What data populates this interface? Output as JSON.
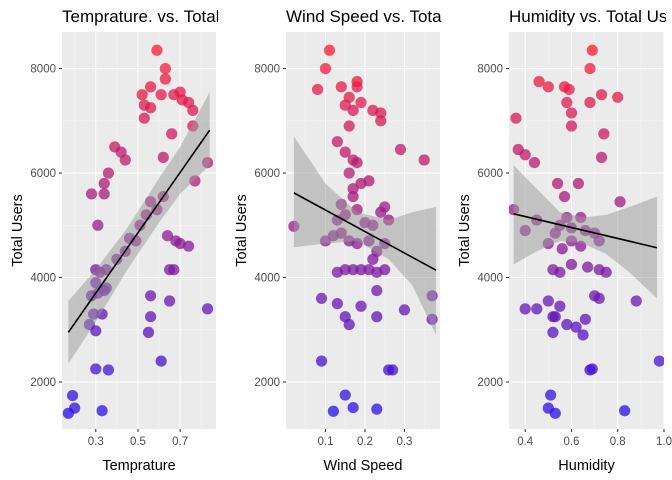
{
  "chart_data": [
    {
      "type": "scatter",
      "title": "Temprature. vs. Total Users",
      "xlabel": "Temprature",
      "ylabel": "Total Users",
      "xlim": [
        0.14,
        0.87
      ],
      "ylim": [
        1100,
        8700
      ],
      "xticks": [
        0.3,
        0.5,
        0.7
      ],
      "xtick_labels": [
        "0.3",
        "0.5",
        "0.7"
      ],
      "yticks": [
        2000,
        4000,
        6000,
        8000
      ],
      "ytick_labels": [
        "2000",
        "4000",
        "6000",
        "8000"
      ],
      "fit": {
        "x": [
          0.17,
          0.84
        ],
        "y": [
          2950,
          6820
        ]
      },
      "ci": {
        "x": [
          0.17,
          0.3,
          0.45,
          0.6,
          0.7,
          0.84
        ],
        "lower": [
          2350,
          3150,
          4150,
          5050,
          5600,
          6150
        ],
        "upper": [
          3550,
          4150,
          4950,
          5900,
          6500,
          7550
        ]
      },
      "points": [
        {
          "x": 0.17,
          "y": 1400
        },
        {
          "x": 0.19,
          "y": 1740
        },
        {
          "x": 0.2,
          "y": 1500
        },
        {
          "x": 0.33,
          "y": 1450
        },
        {
          "x": 0.3,
          "y": 2250
        },
        {
          "x": 0.36,
          "y": 2230
        },
        {
          "x": 0.61,
          "y": 2400
        },
        {
          "x": 0.3,
          "y": 2980
        },
        {
          "x": 0.55,
          "y": 2950
        },
        {
          "x": 0.29,
          "y": 3300
        },
        {
          "x": 0.33,
          "y": 3300
        },
        {
          "x": 0.27,
          "y": 3100
        },
        {
          "x": 0.56,
          "y": 3250
        },
        {
          "x": 0.83,
          "y": 3400
        },
        {
          "x": 0.65,
          "y": 3550
        },
        {
          "x": 0.28,
          "y": 3650
        },
        {
          "x": 0.31,
          "y": 3700
        },
        {
          "x": 0.34,
          "y": 3750
        },
        {
          "x": 0.56,
          "y": 3650
        },
        {
          "x": 0.3,
          "y": 3900
        },
        {
          "x": 0.35,
          "y": 3800
        },
        {
          "x": 0.32,
          "y": 4100
        },
        {
          "x": 0.3,
          "y": 4150
        },
        {
          "x": 0.35,
          "y": 4150
        },
        {
          "x": 0.4,
          "y": 4350
        },
        {
          "x": 0.44,
          "y": 4500
        },
        {
          "x": 0.65,
          "y": 4150
        },
        {
          "x": 0.67,
          "y": 4150
        },
        {
          "x": 0.7,
          "y": 4650
        },
        {
          "x": 0.74,
          "y": 4600
        },
        {
          "x": 0.46,
          "y": 4750
        },
        {
          "x": 0.49,
          "y": 4700
        },
        {
          "x": 0.64,
          "y": 4800
        },
        {
          "x": 0.68,
          "y": 4700
        },
        {
          "x": 0.51,
          "y": 5000
        },
        {
          "x": 0.54,
          "y": 5200
        },
        {
          "x": 0.56,
          "y": 5450
        },
        {
          "x": 0.59,
          "y": 5300
        },
        {
          "x": 0.31,
          "y": 5000
        },
        {
          "x": 0.28,
          "y": 5600
        },
        {
          "x": 0.34,
          "y": 5600
        },
        {
          "x": 0.34,
          "y": 5800
        },
        {
          "x": 0.36,
          "y": 6000
        },
        {
          "x": 0.62,
          "y": 5550
        },
        {
          "x": 0.77,
          "y": 5850
        },
        {
          "x": 0.83,
          "y": 6200
        },
        {
          "x": 0.62,
          "y": 6300
        },
        {
          "x": 0.39,
          "y": 6500
        },
        {
          "x": 0.42,
          "y": 6400
        },
        {
          "x": 0.44,
          "y": 6250
        },
        {
          "x": 0.66,
          "y": 6750
        },
        {
          "x": 0.76,
          "y": 6900
        },
        {
          "x": 0.53,
          "y": 7050
        },
        {
          "x": 0.53,
          "y": 7300
        },
        {
          "x": 0.56,
          "y": 7250
        },
        {
          "x": 0.52,
          "y": 7500
        },
        {
          "x": 0.56,
          "y": 7650
        },
        {
          "x": 0.61,
          "y": 7500
        },
        {
          "x": 0.63,
          "y": 7800
        },
        {
          "x": 0.63,
          "y": 8000
        },
        {
          "x": 0.67,
          "y": 7500
        },
        {
          "x": 0.7,
          "y": 7550
        },
        {
          "x": 0.71,
          "y": 7400
        },
        {
          "x": 0.74,
          "y": 7350
        },
        {
          "x": 0.76,
          "y": 7200
        },
        {
          "x": 0.59,
          "y": 8350
        }
      ]
    },
    {
      "type": "scatter",
      "title": "Wind Speed vs. Total Users",
      "xlabel": "Wind Speed",
      "ylabel": "Total Users",
      "xlim": [
        0.0,
        0.39
      ],
      "ylim": [
        1100,
        8700
      ],
      "xticks": [
        0.1,
        0.2,
        0.3
      ],
      "xtick_labels": [
        "0.1",
        "0.2",
        "0.3"
      ],
      "yticks": [
        2000,
        4000,
        6000,
        8000
      ],
      "ytick_labels": [
        "2000",
        "4000",
        "6000",
        "8000"
      ],
      "fit": {
        "x": [
          0.02,
          0.38
        ],
        "y": [
          5620,
          4140
        ]
      },
      "ci": {
        "x": [
          0.02,
          0.1,
          0.18,
          0.26,
          0.32,
          0.38
        ],
        "lower": [
          4580,
          4650,
          4700,
          4350,
          3850,
          2900
        ],
        "upper": [
          6700,
          5800,
          5250,
          5100,
          5250,
          5350
        ]
      },
      "points": [
        {
          "x": 0.02,
          "y": 4980
        },
        {
          "x": 0.08,
          "y": 7600
        },
        {
          "x": 0.1,
          "y": 8000
        },
        {
          "x": 0.11,
          "y": 8350
        },
        {
          "x": 0.09,
          "y": 3600
        },
        {
          "x": 0.09,
          "y": 2400
        },
        {
          "x": 0.12,
          "y": 1440
        },
        {
          "x": 0.15,
          "y": 1750
        },
        {
          "x": 0.17,
          "y": 1510
        },
        {
          "x": 0.23,
          "y": 1480
        },
        {
          "x": 0.13,
          "y": 3500
        },
        {
          "x": 0.15,
          "y": 3250
        },
        {
          "x": 0.16,
          "y": 3100
        },
        {
          "x": 0.19,
          "y": 3450
        },
        {
          "x": 0.23,
          "y": 3250
        },
        {
          "x": 0.23,
          "y": 3750
        },
        {
          "x": 0.26,
          "y": 2230
        },
        {
          "x": 0.27,
          "y": 2230
        },
        {
          "x": 0.3,
          "y": 3380
        },
        {
          "x": 0.37,
          "y": 3650
        },
        {
          "x": 0.37,
          "y": 3200
        },
        {
          "x": 0.13,
          "y": 4100
        },
        {
          "x": 0.15,
          "y": 4150
        },
        {
          "x": 0.17,
          "y": 4150
        },
        {
          "x": 0.19,
          "y": 4150
        },
        {
          "x": 0.21,
          "y": 4150
        },
        {
          "x": 0.23,
          "y": 4100
        },
        {
          "x": 0.25,
          "y": 4150
        },
        {
          "x": 0.22,
          "y": 4350
        },
        {
          "x": 0.25,
          "y": 4650
        },
        {
          "x": 0.1,
          "y": 4700
        },
        {
          "x": 0.12,
          "y": 4800
        },
        {
          "x": 0.14,
          "y": 4850
        },
        {
          "x": 0.16,
          "y": 4700
        },
        {
          "x": 0.18,
          "y": 4650
        },
        {
          "x": 0.21,
          "y": 4700
        },
        {
          "x": 0.23,
          "y": 4500
        },
        {
          "x": 0.13,
          "y": 5100
        },
        {
          "x": 0.15,
          "y": 5200
        },
        {
          "x": 0.18,
          "y": 5300
        },
        {
          "x": 0.2,
          "y": 5050
        },
        {
          "x": 0.22,
          "y": 5000
        },
        {
          "x": 0.24,
          "y": 5250
        },
        {
          "x": 0.26,
          "y": 5100
        },
        {
          "x": 0.14,
          "y": 5400
        },
        {
          "x": 0.17,
          "y": 5550
        },
        {
          "x": 0.19,
          "y": 5800
        },
        {
          "x": 0.21,
          "y": 5850
        },
        {
          "x": 0.25,
          "y": 5350
        },
        {
          "x": 0.17,
          "y": 5700
        },
        {
          "x": 0.16,
          "y": 6000
        },
        {
          "x": 0.18,
          "y": 6200
        },
        {
          "x": 0.15,
          "y": 6400
        },
        {
          "x": 0.17,
          "y": 6250
        },
        {
          "x": 0.29,
          "y": 6450
        },
        {
          "x": 0.35,
          "y": 6250
        },
        {
          "x": 0.13,
          "y": 6600
        },
        {
          "x": 0.16,
          "y": 6900
        },
        {
          "x": 0.17,
          "y": 7200
        },
        {
          "x": 0.19,
          "y": 7350
        },
        {
          "x": 0.22,
          "y": 7200
        },
        {
          "x": 0.24,
          "y": 7150
        },
        {
          "x": 0.24,
          "y": 7000
        },
        {
          "x": 0.15,
          "y": 7300
        },
        {
          "x": 0.16,
          "y": 7450
        },
        {
          "x": 0.18,
          "y": 7650
        },
        {
          "x": 0.18,
          "y": 7750
        },
        {
          "x": 0.14,
          "y": 7650
        }
      ]
    },
    {
      "type": "scatter",
      "title": "Humidity vs. Total Users",
      "xlabel": "Humidity",
      "ylabel": "Total Users",
      "xlim": [
        0.33,
        1.0
      ],
      "ylim": [
        1100,
        8700
      ],
      "xticks": [
        0.4,
        0.6,
        0.8,
        1.0
      ],
      "xtick_labels": [
        "0.4",
        "0.6",
        "0.8",
        "1.0"
      ],
      "yticks": [
        2000,
        4000,
        6000,
        8000
      ],
      "ytick_labels": [
        "2000",
        "4000",
        "6000",
        "8000"
      ],
      "fit": {
        "x": [
          0.35,
          0.97
        ],
        "y": [
          5220,
          4570
        ]
      },
      "ci": {
        "x": [
          0.35,
          0.45,
          0.55,
          0.65,
          0.75,
          0.85,
          0.97
        ],
        "lower": [
          4250,
          4500,
          4700,
          4650,
          4450,
          4100,
          3600
        ],
        "upper": [
          6150,
          5700,
          5250,
          5150,
          5200,
          5350,
          5550
        ]
      },
      "points": [
        {
          "x": 0.35,
          "y": 5300
        },
        {
          "x": 0.36,
          "y": 7050
        },
        {
          "x": 0.37,
          "y": 6450
        },
        {
          "x": 0.4,
          "y": 6350
        },
        {
          "x": 0.44,
          "y": 6200
        },
        {
          "x": 0.46,
          "y": 7750
        },
        {
          "x": 0.5,
          "y": 7650
        },
        {
          "x": 0.57,
          "y": 7650
        },
        {
          "x": 0.59,
          "y": 7600
        },
        {
          "x": 0.58,
          "y": 7350
        },
        {
          "x": 0.6,
          "y": 7150
        },
        {
          "x": 0.69,
          "y": 8350
        },
        {
          "x": 0.68,
          "y": 8000
        },
        {
          "x": 0.68,
          "y": 7350
        },
        {
          "x": 0.73,
          "y": 7500
        },
        {
          "x": 0.8,
          "y": 7450
        },
        {
          "x": 0.6,
          "y": 6900
        },
        {
          "x": 0.74,
          "y": 6750
        },
        {
          "x": 0.73,
          "y": 6300
        },
        {
          "x": 0.54,
          "y": 5800
        },
        {
          "x": 0.57,
          "y": 5550
        },
        {
          "x": 0.63,
          "y": 5800
        },
        {
          "x": 0.81,
          "y": 5450
        },
        {
          "x": 0.4,
          "y": 4900
        },
        {
          "x": 0.45,
          "y": 5100
        },
        {
          "x": 0.5,
          "y": 4650
        },
        {
          "x": 0.53,
          "y": 4850
        },
        {
          "x": 0.55,
          "y": 5000
        },
        {
          "x": 0.58,
          "y": 5150
        },
        {
          "x": 0.6,
          "y": 4950
        },
        {
          "x": 0.64,
          "y": 5150
        },
        {
          "x": 0.66,
          "y": 4900
        },
        {
          "x": 0.7,
          "y": 4850
        },
        {
          "x": 0.72,
          "y": 4700
        },
        {
          "x": 0.56,
          "y": 4550
        },
        {
          "x": 0.6,
          "y": 4700
        },
        {
          "x": 0.64,
          "y": 4600
        },
        {
          "x": 0.52,
          "y": 4150
        },
        {
          "x": 0.55,
          "y": 4100
        },
        {
          "x": 0.6,
          "y": 4250
        },
        {
          "x": 0.67,
          "y": 4200
        },
        {
          "x": 0.72,
          "y": 4150
        },
        {
          "x": 0.75,
          "y": 4100
        },
        {
          "x": 0.4,
          "y": 3400
        },
        {
          "x": 0.45,
          "y": 3400
        },
        {
          "x": 0.5,
          "y": 3550
        },
        {
          "x": 0.52,
          "y": 3250
        },
        {
          "x": 0.53,
          "y": 3250
        },
        {
          "x": 0.55,
          "y": 3450
        },
        {
          "x": 0.58,
          "y": 3100
        },
        {
          "x": 0.62,
          "y": 3050
        },
        {
          "x": 0.66,
          "y": 3200
        },
        {
          "x": 0.7,
          "y": 3650
        },
        {
          "x": 0.72,
          "y": 3600
        },
        {
          "x": 0.88,
          "y": 3550
        },
        {
          "x": 0.52,
          "y": 2950
        },
        {
          "x": 0.65,
          "y": 2900
        },
        {
          "x": 0.69,
          "y": 2250
        },
        {
          "x": 0.68,
          "y": 2230
        },
        {
          "x": 0.98,
          "y": 2400
        },
        {
          "x": 0.51,
          "y": 1750
        },
        {
          "x": 0.5,
          "y": 1500
        },
        {
          "x": 0.53,
          "y": 1400
        },
        {
          "x": 0.83,
          "y": 1450
        }
      ]
    }
  ]
}
